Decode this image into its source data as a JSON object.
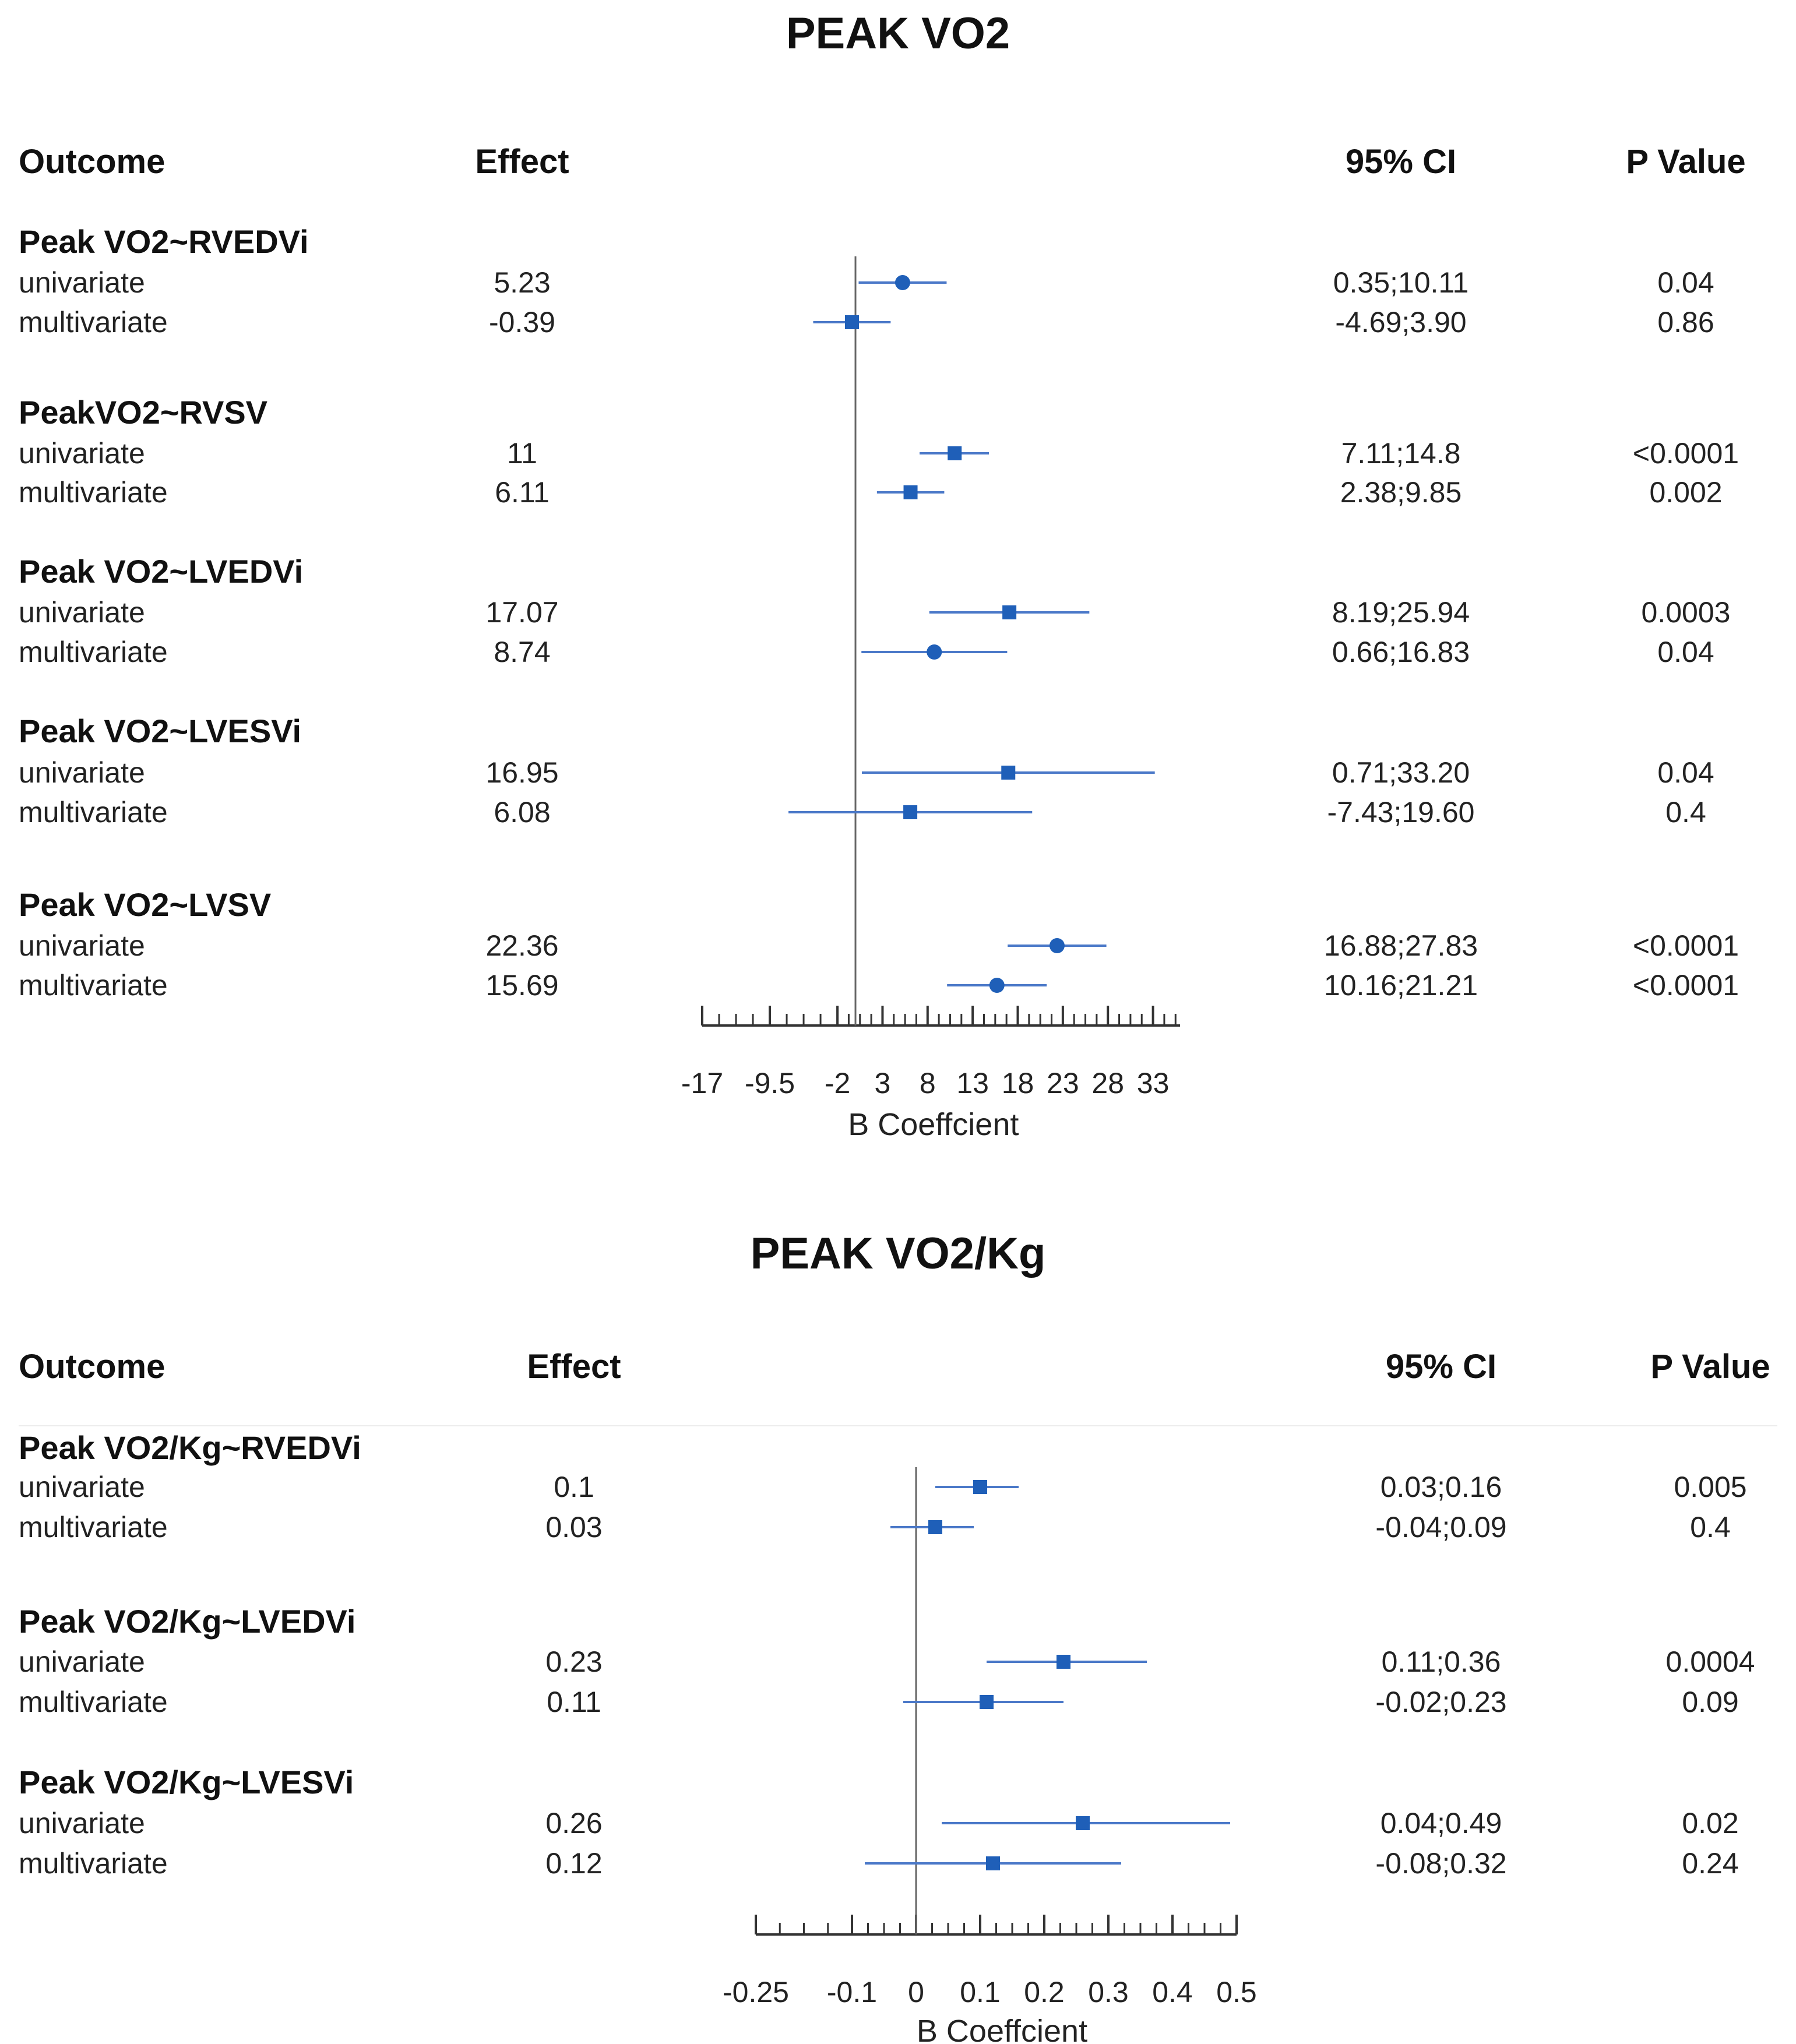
{
  "chart_data": [
    {
      "type": "forest",
      "title": "PEAK VO2",
      "columns": {
        "outcome": "Outcome",
        "effect": "Effect",
        "ci": "95% CI",
        "p": "P Value"
      },
      "xlabel": "B Coeffcient",
      "xlim": [
        -17,
        36
      ],
      "ticks": [
        -17,
        -9.5,
        -2,
        3,
        8,
        13,
        18,
        23,
        28,
        33
      ],
      "tick_labels": [
        "-17",
        "-9.5",
        "-2",
        "3",
        "8",
        "13",
        "18",
        "23",
        "28",
        "33"
      ],
      "reference_line": 0,
      "groups": [
        {
          "label": "Peak VO2~RVEDVi",
          "rows": [
            {
              "label": "univariate",
              "effect": 5.23,
              "effect_text": "5.23",
              "lo": 0.35,
              "hi": 10.11,
              "ci_text": "0.35;10.11",
              "p_text": "0.04",
              "marker": "circle"
            },
            {
              "label": "multivariate",
              "effect": -0.39,
              "effect_text": "-0.39",
              "lo": -4.69,
              "hi": 3.9,
              "ci_text": "-4.69;3.90",
              "p_text": "0.86",
              "marker": "square"
            }
          ]
        },
        {
          "label": "PeakVO2~RVSV",
          "rows": [
            {
              "label": "univariate",
              "effect": 11,
              "effect_text": "11",
              "lo": 7.11,
              "hi": 14.8,
              "ci_text": "7.11;14.8",
              "p_text": "<0.0001",
              "marker": "square"
            },
            {
              "label": "multivariate",
              "effect": 6.11,
              "effect_text": "6.11",
              "lo": 2.38,
              "hi": 9.85,
              "ci_text": "2.38;9.85",
              "p_text": "0.002",
              "marker": "square"
            }
          ]
        },
        {
          "label": "Peak VO2~LVEDVi",
          "rows": [
            {
              "label": "univariate",
              "effect": 17.07,
              "effect_text": "17.07",
              "lo": 8.19,
              "hi": 25.94,
              "ci_text": "8.19;25.94",
              "p_text": "0.0003",
              "marker": "square"
            },
            {
              "label": "multivariate",
              "effect": 8.74,
              "effect_text": "8.74",
              "lo": 0.66,
              "hi": 16.83,
              "ci_text": "0.66;16.83",
              "p_text": "0.04",
              "marker": "circle"
            }
          ]
        },
        {
          "label": "Peak VO2~LVESVi",
          "rows": [
            {
              "label": "univariate",
              "effect": 16.95,
              "effect_text": "16.95",
              "lo": 0.71,
              "hi": 33.2,
              "ci_text": "0.71;33.20",
              "p_text": "0.04",
              "marker": "square"
            },
            {
              "label": "multivariate",
              "effect": 6.08,
              "effect_text": "6.08",
              "lo": -7.43,
              "hi": 19.6,
              "ci_text": "-7.43;19.60",
              "p_text": "0.4",
              "marker": "square"
            }
          ]
        },
        {
          "label": "Peak VO2~LVSV",
          "rows": [
            {
              "label": "univariate",
              "effect": 22.36,
              "effect_text": "22.36",
              "lo": 16.88,
              "hi": 27.83,
              "ci_text": "16.88;27.83",
              "p_text": "<0.0001",
              "marker": "circle"
            },
            {
              "label": "multivariate",
              "effect": 15.69,
              "effect_text": "15.69",
              "lo": 10.16,
              "hi": 21.21,
              "ci_text": "10.16;21.21",
              "p_text": "<0.0001",
              "marker": "circle"
            }
          ]
        }
      ]
    },
    {
      "type": "forest",
      "title": "PEAK VO2/Kg",
      "columns": {
        "outcome": "Outcome",
        "effect": "Effect",
        "ci": "95% CI",
        "p": "P Value"
      },
      "xlabel": "B Coeffcient",
      "xlim": [
        -0.25,
        0.5
      ],
      "ticks": [
        -0.25,
        -0.1,
        0,
        0.1,
        0.2,
        0.3,
        0.4,
        0.5
      ],
      "tick_labels": [
        "-0.25",
        "-0.1",
        "0",
        "0.1",
        "0.2",
        "0.3",
        "0.4",
        "0.5"
      ],
      "reference_line": 0,
      "groups": [
        {
          "label": "Peak VO2/Kg~RVEDVi",
          "rows": [
            {
              "label": "univariate",
              "effect": 0.1,
              "effect_text": "0.1",
              "lo": 0.03,
              "hi": 0.16,
              "ci_text": "0.03;0.16",
              "p_text": "0.005",
              "marker": "square"
            },
            {
              "label": "multivariate",
              "effect": 0.03,
              "effect_text": "0.03",
              "lo": -0.04,
              "hi": 0.09,
              "ci_text": "-0.04;0.09",
              "p_text": "0.4",
              "marker": "square"
            }
          ]
        },
        {
          "label": "Peak VO2/Kg~LVEDVi",
          "rows": [
            {
              "label": "univariate",
              "effect": 0.23,
              "effect_text": "0.23",
              "lo": 0.11,
              "hi": 0.36,
              "ci_text": "0.11;0.36",
              "p_text": "0.0004",
              "marker": "square"
            },
            {
              "label": "multivariate",
              "effect": 0.11,
              "effect_text": "0.11",
              "lo": -0.02,
              "hi": 0.23,
              "ci_text": "-0.02;0.23",
              "p_text": "0.09",
              "marker": "square"
            }
          ]
        },
        {
          "label": "Peak VO2/Kg~LVESVi",
          "rows": [
            {
              "label": "univariate",
              "effect": 0.26,
              "effect_text": "0.26",
              "lo": 0.04,
              "hi": 0.49,
              "ci_text": "0.04;0.49",
              "p_text": "0.02",
              "marker": "square"
            },
            {
              "label": "multivariate",
              "effect": 0.12,
              "effect_text": "0.12",
              "lo": -0.08,
              "hi": 0.32,
              "ci_text": "-0.08;0.32",
              "p_text": "0.24",
              "marker": "square"
            }
          ]
        }
      ]
    }
  ],
  "style": {
    "marker_color": "#1f5fb8",
    "line_color": "#4a78c8",
    "axis_color": "#333333",
    "ref_color": "#666666"
  }
}
